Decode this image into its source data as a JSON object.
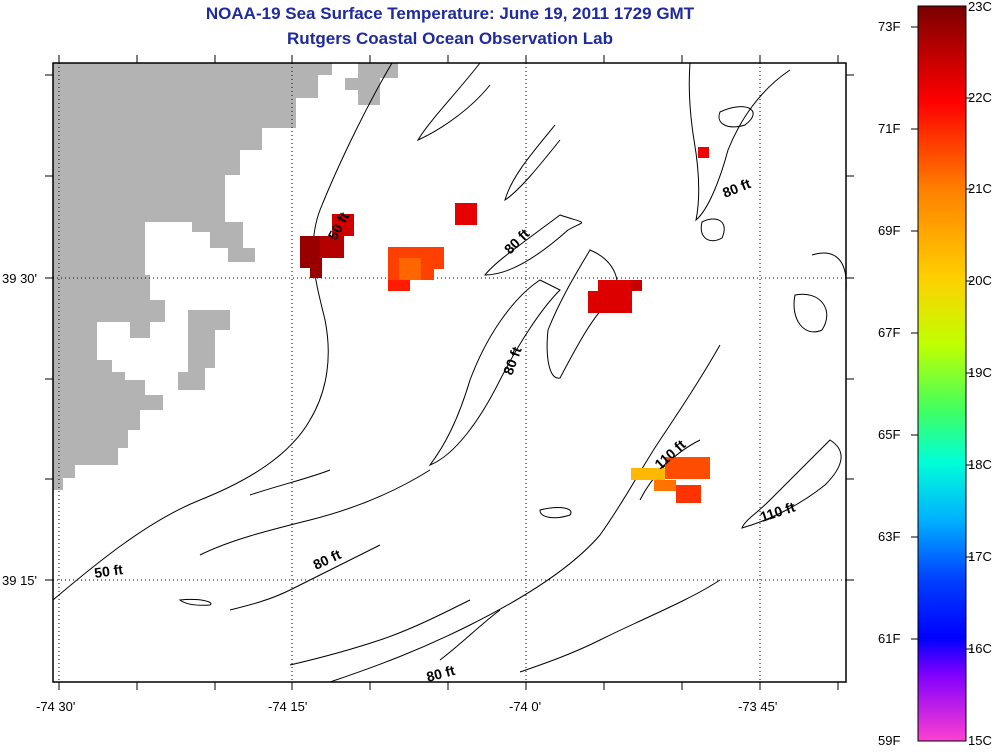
{
  "header": {
    "title": "NOAA-19 Sea Surface Temperature:  June 19, 2011 1729 GMT",
    "subtitle": "Rutgers Coastal Ocean Observation Lab"
  },
  "map": {
    "lon_labels": [
      "-74 30'",
      "-74 15'",
      "-74 0'",
      "-73 45'"
    ],
    "lat_labels": [
      "39 30'",
      "39 15'"
    ],
    "land_color": "#b3b3b3",
    "depth_labels": [
      "50 ft",
      "50 ft",
      "80 ft",
      "80 ft",
      "80 ft",
      "80 ft",
      "80 ft",
      "110 ft",
      "110 ft"
    ]
  },
  "sst_pixels": [
    {
      "temp_c": 22.8
    },
    {
      "temp_c": 22.6
    },
    {
      "temp_c": 22.4
    },
    {
      "temp_c": 22.2
    },
    {
      "temp_c": 21.5
    },
    {
      "temp_c": 21.2
    },
    {
      "temp_c": 21.8
    },
    {
      "temp_c": 22.3
    },
    {
      "temp_c": 22.5
    },
    {
      "temp_c": 22.1
    },
    {
      "temp_c": 21.4
    },
    {
      "temp_c": 20.3
    },
    {
      "temp_c": 21.1
    },
    {
      "temp_c": 21.6
    }
  ],
  "colorbar": {
    "f_labels": [
      "73F",
      "71F",
      "69F",
      "67F",
      "65F",
      "63F",
      "61F",
      "59F"
    ],
    "c_labels": [
      "23C",
      "22C",
      "21C",
      "20C",
      "19C",
      "18C",
      "17C",
      "16C",
      "15C"
    ],
    "range_c": [
      15,
      23
    ]
  }
}
